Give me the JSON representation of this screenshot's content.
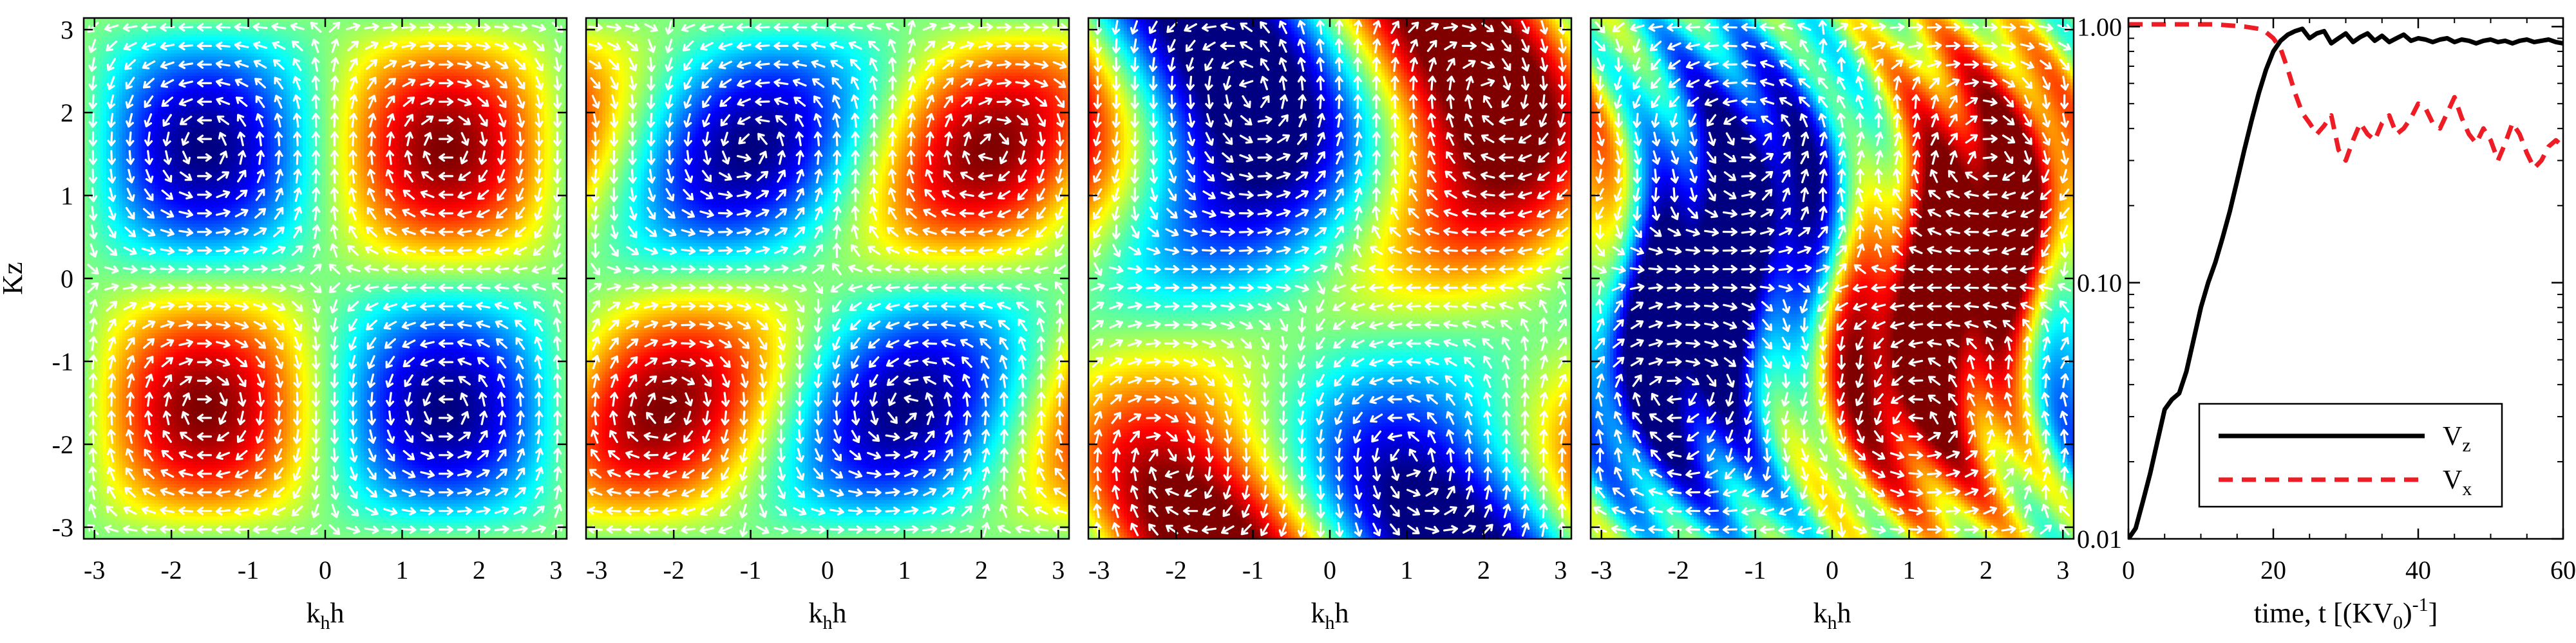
{
  "chart_data": [
    {
      "type": "heatmap",
      "field": "cellular_vortices",
      "xlabel_main": "k",
      "xlabel_sub": "h",
      "xlabel_tail": "h",
      "ylabel": "Kz",
      "xlim": [
        -3.14,
        3.14
      ],
      "ylim": [
        -3.14,
        3.14
      ],
      "xticks": [
        "-3",
        "-2",
        "-1",
        "0",
        "1",
        "2",
        "3"
      ],
      "xtick_values": [
        -3,
        -2,
        -1,
        0,
        1,
        2,
        3
      ],
      "yticks": [
        "-3",
        "-2",
        "-1",
        "0",
        "1",
        "2",
        "3"
      ],
      "ytick_values": [
        -3,
        -2,
        -1,
        0,
        1,
        2,
        3
      ],
      "colormap": "jet",
      "vector_color": "#ffffff"
    },
    {
      "type": "heatmap",
      "field": "tilted_vortices",
      "xlabel_main": "k",
      "xlabel_sub": "h",
      "xlabel_tail": "h",
      "xlim": [
        -3.14,
        3.14
      ],
      "ylim": [
        -3.14,
        3.14
      ],
      "xticks": [
        "-3",
        "-2",
        "-1",
        "0",
        "1",
        "2",
        "3"
      ],
      "xtick_values": [
        -3,
        -2,
        -1,
        0,
        1,
        2,
        3
      ],
      "colormap": "jet",
      "vector_color": "#ffffff"
    },
    {
      "type": "heatmap",
      "field": "sheared_vortices",
      "xlabel_main": "k",
      "xlabel_sub": "h",
      "xlabel_tail": "h",
      "xlim": [
        -3.14,
        3.14
      ],
      "ylim": [
        -3.14,
        3.14
      ],
      "xticks": [
        "-3",
        "-2",
        "-1",
        "0",
        "1",
        "2",
        "3"
      ],
      "xtick_values": [
        -3,
        -2,
        -1,
        0,
        1,
        2,
        3
      ],
      "colormap": "jet",
      "vector_color": "#ffffff"
    },
    {
      "type": "heatmap",
      "field": "turbulent_layers",
      "xlabel_main": "k",
      "xlabel_sub": "h",
      "xlabel_tail": "h",
      "xlim": [
        -3.14,
        3.14
      ],
      "ylim": [
        -3.14,
        3.14
      ],
      "xticks": [
        "-3",
        "-2",
        "-1",
        "0",
        "1",
        "2",
        "3"
      ],
      "xtick_values": [
        -3,
        -2,
        -1,
        0,
        1,
        2,
        3
      ],
      "colormap": "jet",
      "vector_color": "#ffffff"
    },
    {
      "type": "line",
      "xlabel": "time, t [(KV",
      "xlabel_sub": "0",
      "xlabel_close": ")",
      "xlabel_sup": "-1",
      "xlabel_end": "]",
      "xlim": [
        0,
        60
      ],
      "ylim": [
        0.01,
        1.0
      ],
      "yscale": "log",
      "xticks": [
        "0",
        "20",
        "40",
        "60"
      ],
      "xtick_values": [
        0,
        20,
        40,
        60
      ],
      "yticks": [
        "0.01",
        "0.10",
        "1.00"
      ],
      "ytick_values": [
        0.01,
        0.1,
        1.0
      ],
      "legend_position": "bottom-right",
      "series": [
        {
          "name": "V",
          "name_sub": "z",
          "color": "#000000",
          "dash": "solid",
          "x": [
            0,
            1,
            2,
            3,
            4,
            5,
            6,
            7,
            8,
            9,
            10,
            11,
            12,
            13,
            14,
            15,
            16,
            17,
            18,
            19,
            20,
            21,
            22,
            23,
            24,
            25,
            26,
            27,
            28,
            29,
            30,
            31,
            32,
            33,
            34,
            35,
            36,
            37,
            38,
            39,
            40,
            41,
            42,
            43,
            44,
            45,
            46,
            47,
            48,
            49,
            50,
            51,
            52,
            53,
            54,
            55,
            56,
            57,
            58,
            59,
            60
          ],
          "values": [
            0.01,
            0.011,
            0.014,
            0.018,
            0.024,
            0.032,
            0.035,
            0.037,
            0.045,
            0.06,
            0.08,
            0.1,
            0.12,
            0.15,
            0.19,
            0.25,
            0.33,
            0.43,
            0.55,
            0.68,
            0.8,
            0.88,
            0.93,
            0.96,
            0.98,
            0.9,
            0.94,
            0.96,
            0.86,
            0.9,
            0.94,
            0.87,
            0.91,
            0.94,
            0.88,
            0.92,
            0.87,
            0.9,
            0.93,
            0.88,
            0.9,
            0.89,
            0.87,
            0.89,
            0.9,
            0.87,
            0.89,
            0.88,
            0.86,
            0.88,
            0.89,
            0.87,
            0.88,
            0.86,
            0.88,
            0.89,
            0.87,
            0.88,
            0.89,
            0.87,
            0.86
          ]
        },
        {
          "name": "V",
          "name_sub": "x",
          "color": "#ee1c24",
          "dash": "dashed",
          "x": [
            0,
            2,
            4,
            6,
            8,
            10,
            12,
            14,
            16,
            18,
            19,
            20,
            21,
            22,
            23,
            24,
            25,
            26,
            27,
            28,
            29,
            30,
            31,
            32,
            33,
            34,
            35,
            36,
            37,
            38,
            39,
            40,
            41,
            42,
            43,
            44,
            45,
            46,
            47,
            48,
            49,
            50,
            51,
            52,
            53,
            54,
            55,
            56,
            57,
            58,
            59,
            60
          ],
          "values": [
            1.02,
            1.02,
            1.02,
            1.02,
            1.02,
            1.02,
            1.02,
            1.01,
            1.0,
            0.98,
            0.95,
            0.9,
            0.82,
            0.68,
            0.55,
            0.46,
            0.42,
            0.38,
            0.41,
            0.45,
            0.33,
            0.3,
            0.36,
            0.42,
            0.38,
            0.36,
            0.42,
            0.45,
            0.38,
            0.4,
            0.44,
            0.5,
            0.48,
            0.42,
            0.4,
            0.46,
            0.53,
            0.44,
            0.38,
            0.35,
            0.4,
            0.36,
            0.3,
            0.35,
            0.42,
            0.38,
            0.32,
            0.28,
            0.3,
            0.34,
            0.36,
            0.34
          ]
        }
      ]
    }
  ]
}
